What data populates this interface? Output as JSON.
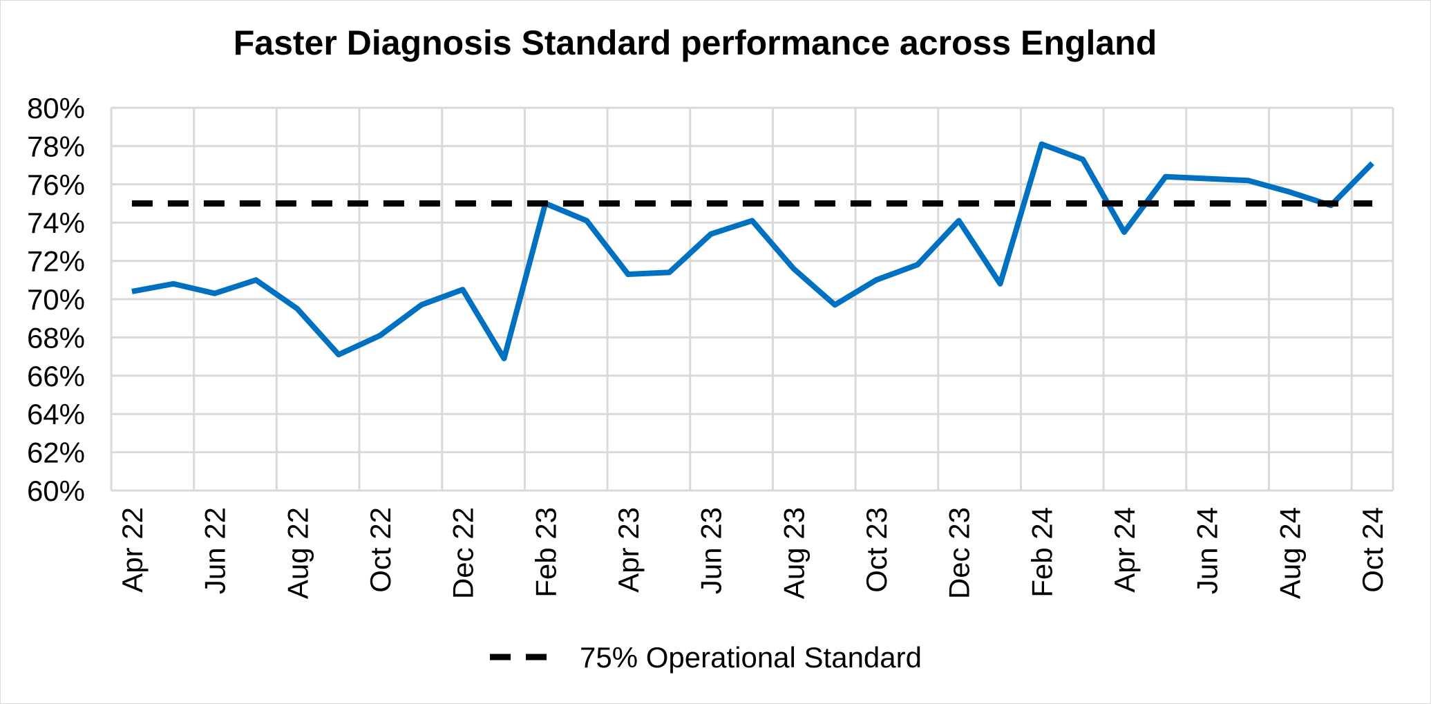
{
  "chart_data": {
    "type": "line",
    "title": "Faster Diagnosis Standard performance across England",
    "xlabel": "",
    "ylabel": "",
    "ylim": [
      60,
      80
    ],
    "y_ticks": [
      "60%",
      "62%",
      "64%",
      "66%",
      "68%",
      "70%",
      "72%",
      "74%",
      "76%",
      "78%",
      "80%"
    ],
    "x_tick_labels": [
      "Apr 22",
      "Jun 22",
      "Aug 22",
      "Oct 22",
      "Dec 22",
      "Feb 23",
      "Apr 23",
      "Jun 23",
      "Aug 23",
      "Oct 23",
      "Dec 23",
      "Feb 24",
      "Apr 24",
      "Jun 24",
      "Aug 24",
      "Oct 24"
    ],
    "categories": [
      "Apr 22",
      "May 22",
      "Jun 22",
      "Jul 22",
      "Aug 22",
      "Sep 22",
      "Oct 22",
      "Nov 22",
      "Dec 22",
      "Jan 23",
      "Feb 23",
      "Mar 23",
      "Apr 23",
      "May 23",
      "Jun 23",
      "Jul 23",
      "Aug 23",
      "Sep 23",
      "Oct 23",
      "Nov 23",
      "Dec 23",
      "Jan 24",
      "Feb 24",
      "Mar 24",
      "Apr 24",
      "May 24",
      "Jun 24",
      "Jul 24",
      "Aug 24",
      "Sep 24",
      "Oct 24"
    ],
    "grid": true,
    "legend_position": "bottom",
    "series": [
      {
        "color": "#0070c0",
        "values": [
          70.4,
          70.8,
          70.3,
          71.0,
          69.5,
          67.1,
          68.1,
          69.7,
          70.5,
          66.9,
          75.0,
          74.1,
          71.3,
          71.4,
          73.4,
          74.1,
          71.6,
          69.7,
          71.0,
          71.8,
          74.1,
          70.8,
          78.1,
          77.3,
          73.5,
          76.4,
          76.3,
          76.2,
          75.6,
          74.9,
          77.1
        ]
      },
      {
        "name": "75% Operational Standard",
        "color": "#000000",
        "dashed": true,
        "values": [
          75,
          75,
          75,
          75,
          75,
          75,
          75,
          75,
          75,
          75,
          75,
          75,
          75,
          75,
          75,
          75,
          75,
          75,
          75,
          75,
          75,
          75,
          75,
          75,
          75,
          75,
          75,
          75,
          75,
          75,
          75
        ]
      }
    ]
  }
}
